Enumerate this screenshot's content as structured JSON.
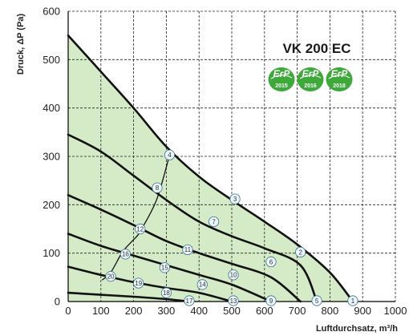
{
  "chart_data": {
    "type": "line",
    "title": "VK 200 EC",
    "xlabel": "Luftdurchsatz, m³/h",
    "ylabel": "Druck, ΔP (Pa)",
    "xlim": [
      0,
      1000
    ],
    "ylim": [
      0,
      600
    ],
    "x_ticks": [
      "0",
      "100",
      "200",
      "300",
      "400",
      "500",
      "600",
      "700",
      "800",
      "900",
      "1000"
    ],
    "y_ticks": [
      "0",
      "100",
      "200",
      "300",
      "400",
      "500",
      "600"
    ],
    "grid": true,
    "badges": [
      {
        "label": "ErP",
        "year": "2015"
      },
      {
        "label": "ErP",
        "year": "2016"
      },
      {
        "label": "ErP",
        "year": "2018"
      }
    ],
    "colors": {
      "fill": "#d5ebc7",
      "curve": "#111111",
      "grid": "#222222",
      "badge": "#3ea83a",
      "point_fill": "#eaf6fb",
      "point_stroke": "#3b6f8c"
    },
    "fill_outline": [
      [
        0,
        550
      ],
      [
        100,
        475
      ],
      [
        200,
        400
      ],
      [
        300,
        320
      ],
      [
        400,
        258
      ],
      [
        500,
        210
      ],
      [
        600,
        165
      ],
      [
        700,
        118
      ],
      [
        800,
        60
      ],
      [
        870,
        0
      ],
      [
        0,
        0
      ]
    ],
    "series": [
      {
        "values": [
          [
            0,
            550
          ],
          [
            100,
            475
          ],
          [
            200,
            400
          ],
          [
            300,
            320
          ],
          [
            400,
            258
          ],
          [
            500,
            210
          ],
          [
            600,
            165
          ],
          [
            700,
            118
          ],
          [
            800,
            60
          ],
          [
            870,
            0
          ]
        ]
      },
      {
        "values": [
          [
            0,
            345
          ],
          [
            100,
            310
          ],
          [
            200,
            260
          ],
          [
            310,
            205
          ],
          [
            400,
            165
          ],
          [
            500,
            135
          ],
          [
            600,
            110
          ],
          [
            710,
            75
          ],
          [
            760,
            0
          ]
        ]
      },
      {
        "values": [
          [
            0,
            220
          ],
          [
            100,
            190
          ],
          [
            200,
            158
          ],
          [
            300,
            125
          ],
          [
            400,
            100
          ],
          [
            500,
            78
          ],
          [
            620,
            50
          ],
          [
            710,
            0
          ]
        ]
      },
      {
        "values": [
          [
            0,
            140
          ],
          [
            100,
            115
          ],
          [
            200,
            95
          ],
          [
            300,
            75
          ],
          [
            400,
            55
          ],
          [
            500,
            35
          ],
          [
            620,
            0
          ]
        ]
      },
      {
        "values": [
          [
            0,
            72
          ],
          [
            100,
            55
          ],
          [
            200,
            40
          ],
          [
            300,
            28
          ],
          [
            400,
            18
          ],
          [
            500,
            0
          ]
        ]
      },
      {
        "values": [
          [
            0,
            18
          ],
          [
            100,
            14
          ],
          [
            200,
            10
          ],
          [
            300,
            5
          ],
          [
            370,
            0
          ]
        ]
      },
      {
        "values": [
          [
            105,
            45
          ],
          [
            130,
            60
          ],
          [
            160,
            96
          ],
          [
            175,
            110
          ],
          [
            200,
            128
          ],
          [
            220,
            145
          ],
          [
            270,
            210
          ],
          [
            310,
            303
          ]
        ]
      }
    ],
    "points": [
      {
        "label": "1",
        "x": 870,
        "y": 0
      },
      {
        "label": "2",
        "x": 710,
        "y": 102
      },
      {
        "label": "3",
        "x": 510,
        "y": 212
      },
      {
        "label": "4",
        "x": 310,
        "y": 303
      },
      {
        "label": "5",
        "x": 760,
        "y": 0
      },
      {
        "label": "6",
        "x": 620,
        "y": 82
      },
      {
        "label": "7",
        "x": 445,
        "y": 165
      },
      {
        "label": "8",
        "x": 272,
        "y": 235
      },
      {
        "label": "9",
        "x": 620,
        "y": 0
      },
      {
        "label": "10",
        "x": 505,
        "y": 55
      },
      {
        "label": "11",
        "x": 365,
        "y": 107
      },
      {
        "label": "12",
        "x": 220,
        "y": 150
      },
      {
        "label": "13",
        "x": 505,
        "y": 0
      },
      {
        "label": "14",
        "x": 410,
        "y": 35
      },
      {
        "label": "15",
        "x": 295,
        "y": 70
      },
      {
        "label": "16",
        "x": 175,
        "y": 98
      },
      {
        "label": "17",
        "x": 370,
        "y": 0
      },
      {
        "label": "18",
        "x": 300,
        "y": 18
      },
      {
        "label": "19",
        "x": 215,
        "y": 38
      },
      {
        "label": "20",
        "x": 130,
        "y": 52
      }
    ]
  }
}
